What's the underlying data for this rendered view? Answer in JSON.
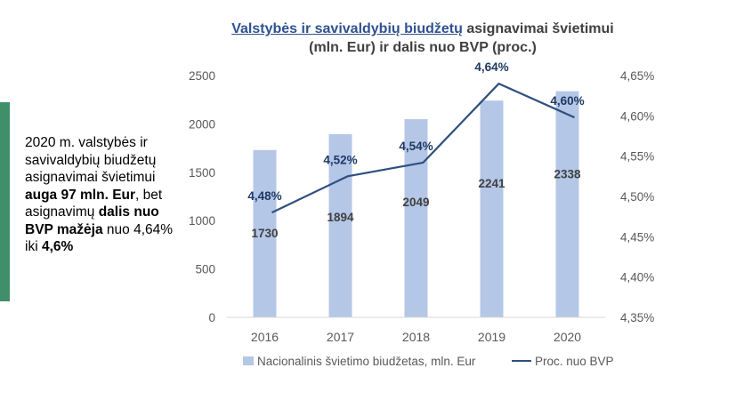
{
  "side_note": {
    "p1": "2020 m. valstybės ir savivaldybių biudžetų asignavimai švietimui ",
    "b1": "auga 97 mln. Eur",
    "p2": ", bet asignavimų ",
    "b2": "dalis nuo BVP mažėja",
    "p3": " nuo 4,64% iki ",
    "b3": "4,6%"
  },
  "colors": {
    "accent": "#3f8f6b",
    "bars": "#b4c7e7",
    "line": "#2f4f7f"
  },
  "chart_data": {
    "type": "bar",
    "title_link": "Valstybės ir savivaldybių biudžetų",
    "title_rest": " asignavimai švietimui (mln. Eur) ir dalis nuo BVP (proc.)",
    "categories": [
      "2016",
      "2017",
      "2018",
      "2019",
      "2020"
    ],
    "series": [
      {
        "name": "Nacionalinis švietimo biudžetas, mln. Eur",
        "type": "bar",
        "axis": "left",
        "values": [
          1730,
          1894,
          2049,
          2241,
          2338
        ],
        "labels": [
          "1730",
          "1894",
          "2049",
          "2241",
          "2338"
        ]
      },
      {
        "name": "Proc. nuo BVP",
        "type": "line",
        "axis": "right",
        "values": [
          4.48,
          4.525,
          4.542,
          4.64,
          4.598
        ],
        "labels": [
          "4,48%",
          "4,52%",
          "4,54%",
          "4,64%",
          "4,60%"
        ]
      }
    ],
    "y_left": {
      "ylim": [
        0,
        2500
      ],
      "ticks": [
        "0",
        "500",
        "1000",
        "1500",
        "2000",
        "2500"
      ]
    },
    "y_right": {
      "ylim": [
        4.35,
        4.65
      ],
      "ticks": [
        "4,35%",
        "4,40%",
        "4,45%",
        "4,50%",
        "4,55%",
        "4,60%",
        "4,65%"
      ]
    },
    "grid": false,
    "legend_position": "bottom"
  }
}
